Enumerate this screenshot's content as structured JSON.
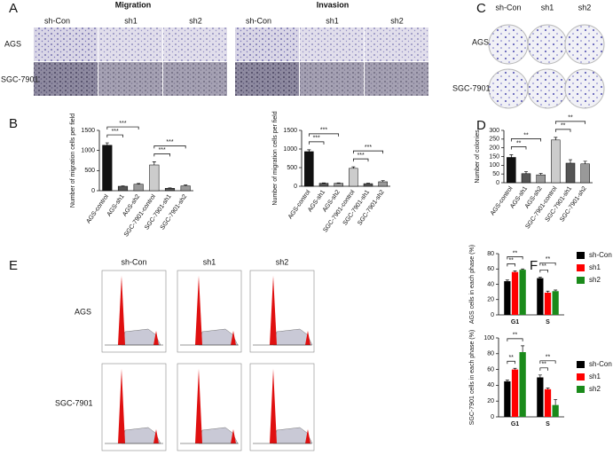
{
  "panels": {
    "A": {
      "letter": "A",
      "titles": [
        "Migration",
        "Invasion"
      ],
      "columns": [
        "sh-Con",
        "sh1",
        "sh2"
      ],
      "rows": [
        "AGS",
        "SGC-7901"
      ]
    },
    "B": {
      "letter": "B"
    },
    "C": {
      "letter": "C",
      "columns": [
        "sh-Con",
        "sh1",
        "sh2"
      ],
      "rows": [
        "AGS",
        "SGC-7901"
      ]
    },
    "D": {
      "letter": "D"
    },
    "E": {
      "letter": "E",
      "columns": [
        "sh-Con",
        "sh1",
        "sh2"
      ],
      "rows": [
        "AGS",
        "SGC-7901"
      ]
    },
    "F": {
      "letter": "F"
    }
  },
  "chart_data": [
    {
      "type": "bar",
      "y_label": "Number of migration cells per field",
      "categories": [
        "AGS-control",
        "AGS-sh1",
        "AGS-sh2",
        "SGC-7901-control",
        "SGC-7901-sh1",
        "SGC-7901-sh2"
      ],
      "values": [
        1130,
        110,
        160,
        640,
        60,
        120
      ],
      "errors": [
        60,
        10,
        20,
        80,
        10,
        20
      ],
      "colors": [
        "#111111",
        "#555555",
        "#999999",
        "#cccccc",
        "#555555",
        "#999999"
      ],
      "ylim": [
        0,
        1500
      ],
      "yticks": [
        0,
        500,
        1000,
        1500
      ],
      "annotations": [
        {
          "text": "***",
          "pair": [
            "AGS-control",
            "AGS-sh1"
          ]
        },
        {
          "text": "***",
          "pair": [
            "AGS-control",
            "AGS-sh2"
          ]
        },
        {
          "text": "***",
          "pair": [
            "SGC-7901-control",
            "SGC-7901-sh1"
          ]
        },
        {
          "text": "***",
          "pair": [
            "SGC-7901-control",
            "SGC-7901-sh2"
          ]
        }
      ]
    },
    {
      "type": "bar",
      "y_label": "Number of migration cells per field",
      "categories": [
        "AGS-control",
        "AGS-sh1",
        "AGS-sh2",
        "SGC-7901-control",
        "SGC-7901-sh1",
        "SGC-7901-sh2"
      ],
      "values": [
        930,
        80,
        80,
        480,
        70,
        120
      ],
      "errors": [
        50,
        10,
        10,
        40,
        10,
        30
      ],
      "colors": [
        "#111111",
        "#555555",
        "#999999",
        "#cccccc",
        "#555555",
        "#999999"
      ],
      "ylim": [
        0,
        1500
      ],
      "yticks": [
        0,
        500,
        1000,
        1500
      ],
      "annotations": [
        {
          "text": "***",
          "pair": [
            "AGS-control",
            "AGS-sh1"
          ]
        },
        {
          "text": "***",
          "pair": [
            "AGS-control",
            "AGS-sh2"
          ]
        },
        {
          "text": "***",
          "pair": [
            "SGC-7901-control",
            "SGC-7901-sh1"
          ]
        },
        {
          "text": "***",
          "pair": [
            "SGC-7901-control",
            "SGC-7901-sh2"
          ]
        }
      ]
    },
    {
      "type": "bar",
      "y_label": "Number of colonies",
      "categories": [
        "AGS-control",
        "AGS-sh1",
        "AGS-sh2",
        "SGC-7901-control",
        "SGC-7901-sh1",
        "SGC-7901-sh2"
      ],
      "values": [
        145,
        52,
        45,
        245,
        112,
        108
      ],
      "errors": [
        15,
        12,
        8,
        15,
        20,
        15
      ],
      "colors": [
        "#111111",
        "#555555",
        "#999999",
        "#cccccc",
        "#555555",
        "#999999"
      ],
      "ylim": [
        0,
        300
      ],
      "yticks": [
        0,
        50,
        100,
        150,
        200,
        250,
        300
      ],
      "annotations": [
        {
          "text": "**",
          "pair": [
            "AGS-control",
            "AGS-sh1"
          ]
        },
        {
          "text": "**",
          "pair": [
            "AGS-control",
            "AGS-sh2"
          ]
        },
        {
          "text": "**",
          "pair": [
            "SGC-7901-control",
            "SGC-7901-sh1"
          ]
        },
        {
          "text": "**",
          "pair": [
            "SGC-7901-control",
            "SGC-7901-sh2"
          ]
        }
      ]
    },
    {
      "type": "grouped_bar",
      "y_label": "AGS cells in each phase (%)",
      "categories": [
        "G1",
        "S"
      ],
      "series": [
        {
          "name": "sh-Con",
          "color": "#000000",
          "values": [
            44,
            48
          ],
          "errors": [
            1.5,
            1.5
          ]
        },
        {
          "name": "sh1",
          "color": "#ff0000",
          "values": [
            56,
            29
          ],
          "errors": [
            1.5,
            2
          ]
        },
        {
          "name": "sh2",
          "color": "#1a8a1a",
          "values": [
            59,
            31
          ],
          "errors": [
            1,
            1.5
          ]
        }
      ],
      "ylim": [
        0,
        80
      ],
      "yticks": [
        0,
        20,
        40,
        60,
        80
      ],
      "annotations": [
        {
          "text": "**",
          "category": "G1",
          "pair": [
            "sh-Con",
            "sh1"
          ]
        },
        {
          "text": "**",
          "category": "G1",
          "pair": [
            "sh-Con",
            "sh2"
          ]
        },
        {
          "text": "**",
          "category": "S",
          "pair": [
            "sh-Con",
            "sh1"
          ]
        },
        {
          "text": "**",
          "category": "S",
          "pair": [
            "sh-Con",
            "sh2"
          ]
        }
      ]
    },
    {
      "type": "grouped_bar",
      "y_label": "SGC-7901 cells in each phase (%)",
      "categories": [
        "G1",
        "S"
      ],
      "series": [
        {
          "name": "sh-Con",
          "color": "#000000",
          "values": [
            45,
            50
          ],
          "errors": [
            1.5,
            3
          ]
        },
        {
          "name": "sh1",
          "color": "#ff0000",
          "values": [
            60,
            35
          ],
          "errors": [
            1.5,
            1.5
          ]
        },
        {
          "name": "sh2",
          "color": "#1a8a1a",
          "values": [
            82,
            15
          ],
          "errors": [
            8,
            7
          ]
        }
      ],
      "ylim": [
        0,
        100
      ],
      "yticks": [
        0,
        20,
        40,
        60,
        80,
        100
      ],
      "annotations": [
        {
          "text": "**",
          "category": "G1",
          "pair": [
            "sh-Con",
            "sh1"
          ]
        },
        {
          "text": "**",
          "category": "G1",
          "pair": [
            "sh-Con",
            "sh2"
          ]
        },
        {
          "text": "**",
          "category": "S",
          "pair": [
            "sh-Con",
            "sh1"
          ]
        },
        {
          "text": "**",
          "category": "S",
          "pair": [
            "sh-Con",
            "sh2"
          ]
        }
      ]
    }
  ]
}
